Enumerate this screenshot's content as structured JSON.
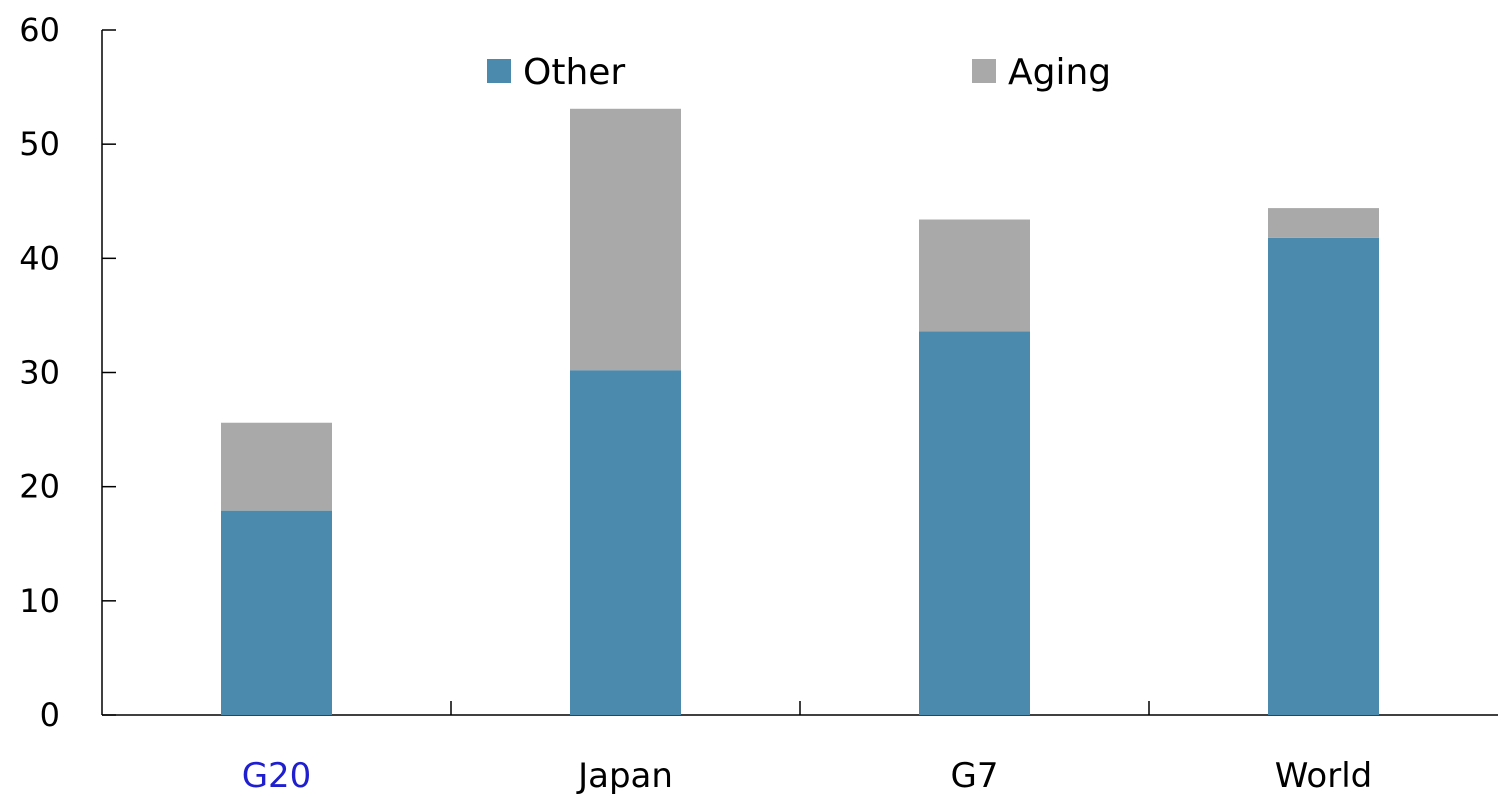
{
  "chart_data": {
    "type": "bar",
    "stacked": true,
    "categories": [
      "G20",
      "Japan",
      "G7",
      "World"
    ],
    "highlighted_category": "G20",
    "series": [
      {
        "name": "Other",
        "color": "#4b8aad",
        "values": [
          17.9,
          30.2,
          33.6,
          41.8
        ]
      },
      {
        "name": "Aging",
        "color": "#a9a9a9",
        "values": [
          7.7,
          22.9,
          9.8,
          2.6
        ]
      }
    ],
    "title": "",
    "xlabel": "",
    "ylabel": "",
    "ylim": [
      0,
      60
    ],
    "yticks": [
      "0",
      "10",
      "20",
      "30",
      "40",
      "50",
      "60"
    ],
    "grid": false,
    "legend_position": "top"
  },
  "colors": {
    "highlight_label": "#1f1fd0",
    "axis": "#000000"
  }
}
